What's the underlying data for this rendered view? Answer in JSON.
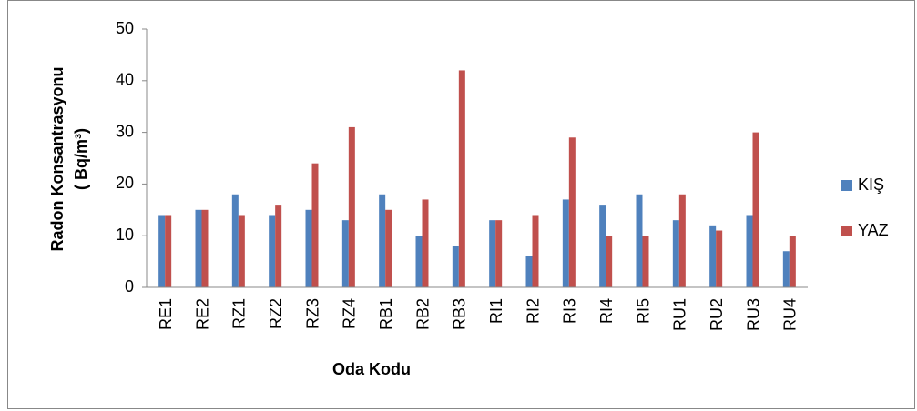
{
  "chart_data": {
    "type": "bar",
    "ylabel": [
      "Radon Konsantrasyonu",
      "( Bq/m³)"
    ],
    "xlabel": "Oda Kodu",
    "categories": [
      "RE1",
      "RE2",
      "RZ1",
      "RZ2",
      "RZ3",
      "RZ4",
      "RB1",
      "RB2",
      "RB3",
      "RI1",
      "RI2",
      "RI3",
      "RI4",
      "RI5",
      "RU1",
      "RU2",
      "RU3",
      "RU4"
    ],
    "series": [
      {
        "name": "KIŞ",
        "color": "#4f81bd",
        "values": [
          14,
          15,
          18,
          14,
          15,
          13,
          18,
          10,
          8,
          13,
          6,
          17,
          16,
          18,
          13,
          12,
          14,
          7
        ]
      },
      {
        "name": "YAZ",
        "color": "#c0504d",
        "values": [
          14,
          15,
          14,
          16,
          24,
          31,
          15,
          17,
          42,
          13,
          14,
          29,
          10,
          10,
          18,
          11,
          30,
          10
        ]
      }
    ],
    "ylim": [
      0,
      50
    ],
    "yticks": [
      0,
      10,
      20,
      30,
      40,
      50
    ],
    "grid": false,
    "legend": "right"
  }
}
